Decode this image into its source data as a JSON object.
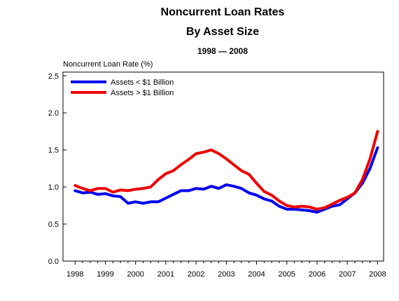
{
  "chart_data": {
    "type": "line",
    "title": "Noncurrent Loan Rates",
    "subtitle": "By Asset Size",
    "period_label": "1998 — 2008",
    "ylabel": "Noncurrent Loan Rate (%)",
    "xlabel": "",
    "ylim": [
      0,
      2.55
    ],
    "xlim": [
      1997.6,
      2008.2
    ],
    "grid": false,
    "legend_position": "top-left",
    "yticks": [
      "0.0",
      "0.5",
      "1.0",
      "1.5",
      "2.0",
      "2.5"
    ],
    "ytick_values": [
      0,
      0.5,
      1.0,
      1.5,
      2.0,
      2.5
    ],
    "xticks": [
      "1998",
      "1999",
      "2000",
      "2001",
      "2002",
      "2003",
      "2004",
      "2005",
      "2006",
      "2007",
      "2008"
    ],
    "xtick_values": [
      1998,
      1999,
      2000,
      2001,
      2002,
      2003,
      2004,
      2005,
      2006,
      2007,
      2008
    ],
    "x": [
      1998.0,
      1998.25,
      1998.5,
      1998.75,
      1999.0,
      1999.25,
      1999.5,
      1999.75,
      2000.0,
      2000.25,
      2000.5,
      2000.75,
      2001.0,
      2001.25,
      2001.5,
      2001.75,
      2002.0,
      2002.25,
      2002.5,
      2002.75,
      2003.0,
      2003.25,
      2003.5,
      2003.75,
      2004.0,
      2004.25,
      2004.5,
      2004.75,
      2005.0,
      2005.25,
      2005.5,
      2005.75,
      2006.0,
      2006.25,
      2006.5,
      2006.75,
      2007.0,
      2007.25,
      2007.5,
      2007.75,
      2008.0
    ],
    "series": [
      {
        "name": "Assets < $1 Billion",
        "color": "#0000ee",
        "values": [
          0.95,
          0.92,
          0.93,
          0.9,
          0.91,
          0.88,
          0.87,
          0.78,
          0.8,
          0.78,
          0.8,
          0.8,
          0.85,
          0.9,
          0.95,
          0.95,
          0.98,
          0.97,
          1.01,
          0.98,
          1.03,
          1.01,
          0.98,
          0.92,
          0.89,
          0.84,
          0.81,
          0.74,
          0.7,
          0.7,
          0.69,
          0.68,
          0.66,
          0.7,
          0.74,
          0.76,
          0.84,
          0.92,
          1.05,
          1.25,
          1.53
        ]
      },
      {
        "name": "Assets > $1 Billion",
        "color": "#ee0000",
        "values": [
          1.02,
          0.98,
          0.95,
          0.98,
          0.98,
          0.93,
          0.96,
          0.95,
          0.97,
          0.98,
          1.0,
          1.1,
          1.18,
          1.22,
          1.3,
          1.37,
          1.45,
          1.47,
          1.5,
          1.45,
          1.38,
          1.3,
          1.22,
          1.17,
          1.05,
          0.94,
          0.89,
          0.81,
          0.75,
          0.73,
          0.74,
          0.73,
          0.7,
          0.72,
          0.77,
          0.82,
          0.86,
          0.92,
          1.1,
          1.38,
          1.75
        ]
      }
    ]
  }
}
